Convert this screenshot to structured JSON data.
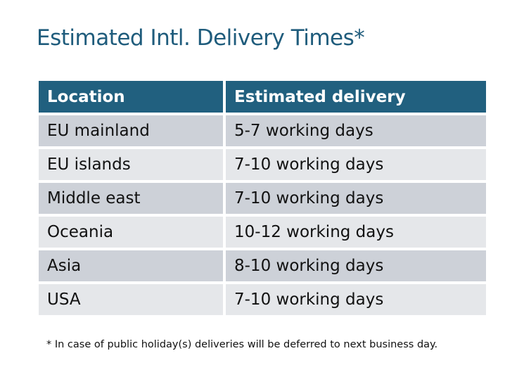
{
  "title": "Estimated Intl. Delivery Times*",
  "table": {
    "headers": [
      "Location",
      "Estimated delivery"
    ],
    "rows": [
      [
        "EU mainland",
        "5-7 working days"
      ],
      [
        "EU islands",
        "7-10 working days"
      ],
      [
        "Middle east",
        "7-10 working days"
      ],
      [
        "Oceania",
        "10-12 working days"
      ],
      [
        "Asia",
        "8-10 working days"
      ],
      [
        "USA",
        "7-10 working days"
      ]
    ]
  },
  "footnote": "* In case of public holiday(s) deliveries will be deferred to next business day.",
  "colors": {
    "header": "#21607f",
    "title": "#1f5c7c",
    "row_odd": "#cdd1d8",
    "row_even": "#e5e7ea"
  }
}
